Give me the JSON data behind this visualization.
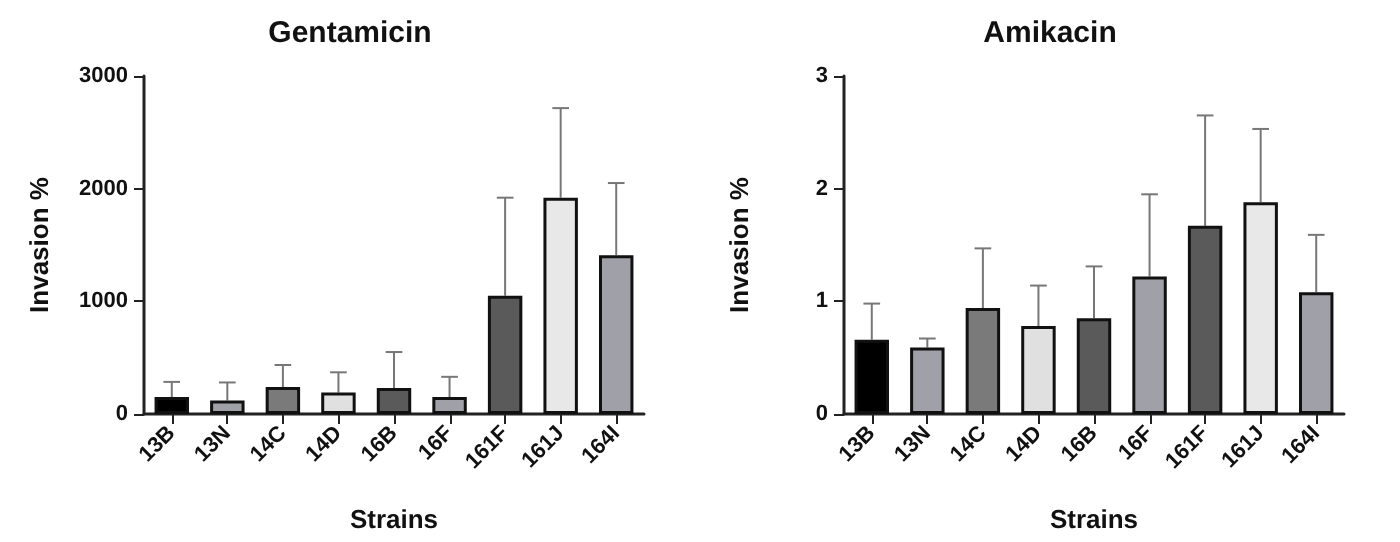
{
  "chart_data": [
    {
      "type": "bar",
      "title": "Gentamicin",
      "xlabel": "Strains",
      "ylabel": "Invasion %",
      "categories": [
        "13B",
        "13N",
        "14C",
        "14D",
        "16B",
        "16F",
        "161F",
        "161J",
        "164I"
      ],
      "values": [
        150,
        120,
        240,
        190,
        230,
        150,
        1050,
        1920,
        1410
      ],
      "errors": [
        [
          150,
          285
        ],
        [
          120,
          280
        ],
        [
          240,
          435
        ],
        [
          190,
          370
        ],
        [
          230,
          550
        ],
        [
          150,
          330
        ],
        [
          1050,
          1920
        ],
        [
          1920,
          2715
        ],
        [
          1410,
          2050
        ]
      ],
      "colors": [
        "#000000",
        "#a0a0a8",
        "#7a7a7a",
        "#e0e0e0",
        "#5a5a5a",
        "#a0a0a8",
        "#5a5a5a",
        "#e8e8e8",
        "#a0a0a8"
      ],
      "ylim": [
        0,
        3000
      ],
      "yticks": [
        0,
        1000,
        2000,
        3000
      ],
      "grid": false
    },
    {
      "type": "bar",
      "title": "Amikacin",
      "xlabel": "Strains",
      "ylabel": "Invasion %",
      "categories": [
        "13B",
        "13N",
        "14C",
        "14D",
        "16B",
        "16F",
        "161F",
        "161J",
        "164I"
      ],
      "values": [
        0.66,
        0.59,
        0.94,
        0.78,
        0.85,
        1.22,
        1.67,
        1.88,
        1.08
      ],
      "errors": [
        [
          0.66,
          0.98
        ],
        [
          0.59,
          0.67
        ],
        [
          0.94,
          1.47
        ],
        [
          0.78,
          1.14
        ],
        [
          0.85,
          1.31
        ],
        [
          1.22,
          1.95
        ],
        [
          1.67,
          2.65
        ],
        [
          1.88,
          2.53
        ],
        [
          1.08,
          1.59
        ]
      ],
      "colors": [
        "#000000",
        "#a0a0a8",
        "#7a7a7a",
        "#e0e0e0",
        "#5a5a5a",
        "#a0a0a8",
        "#5a5a5a",
        "#e8e8e8",
        "#a0a0a8"
      ],
      "ylim": [
        0,
        3
      ],
      "yticks": [
        0,
        1,
        2,
        3
      ],
      "grid": false
    }
  ]
}
